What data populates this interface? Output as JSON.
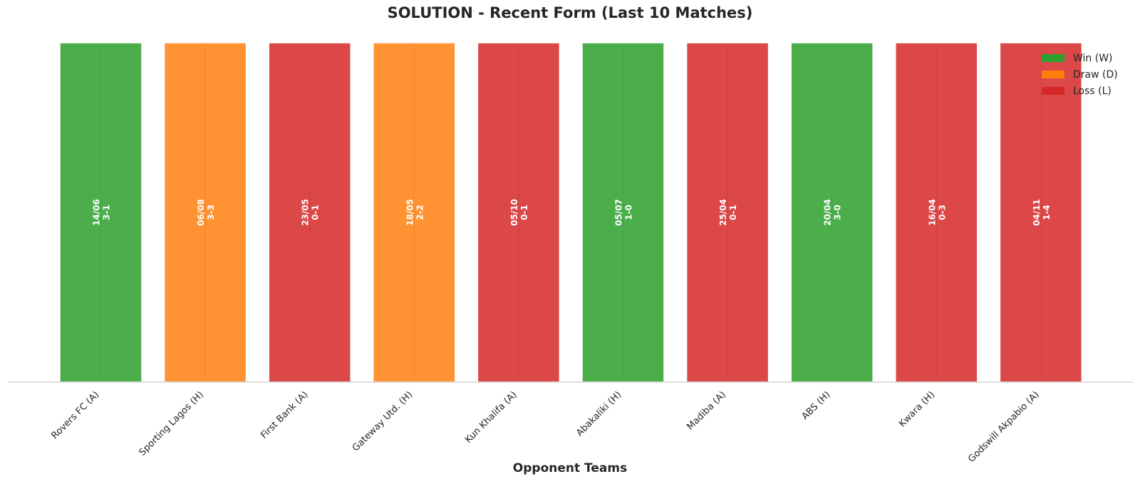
{
  "chart_data": {
    "type": "bar",
    "title": "SOLUTION - Recent Form (Last 10 Matches)",
    "xlabel": "Opponent Teams",
    "ylabel": "",
    "ylim": [
      0,
      1
    ],
    "grid": false,
    "legend_position": "top-right",
    "categories": [
      "Rovers FC (A)",
      "Sporting Lagos (H)",
      "First Bank (A)",
      "Gateway Utd. (H)",
      "Kun Khalifa (A)",
      "Abakaliki (H)",
      "Madiba (A)",
      "ABS (H)",
      "Kwara (H)",
      "Godswill Akpabio (A)"
    ],
    "values": [
      1,
      1,
      1,
      1,
      1,
      1,
      1,
      1,
      1,
      1
    ],
    "results": [
      "W",
      "D",
      "L",
      "D",
      "L",
      "W",
      "L",
      "W",
      "L",
      "L"
    ],
    "dates": [
      "14/06",
      "06/08",
      "23/05",
      "18/05",
      "05/10",
      "05/07",
      "25/04",
      "20/04",
      "16/04",
      "04/11"
    ],
    "scores": [
      "3-1",
      "3-3",
      "0-1",
      "2-2",
      "0-1",
      "1-0",
      "0-1",
      "3-0",
      "0-3",
      "1-4"
    ],
    "legend": [
      {
        "key": "W",
        "label": "Win (W)",
        "color": "#2ca02c"
      },
      {
        "key": "D",
        "label": "Draw (D)",
        "color": "#ff7f0e"
      },
      {
        "key": "L",
        "label": "Loss (L)",
        "color": "#d62728"
      }
    ]
  }
}
